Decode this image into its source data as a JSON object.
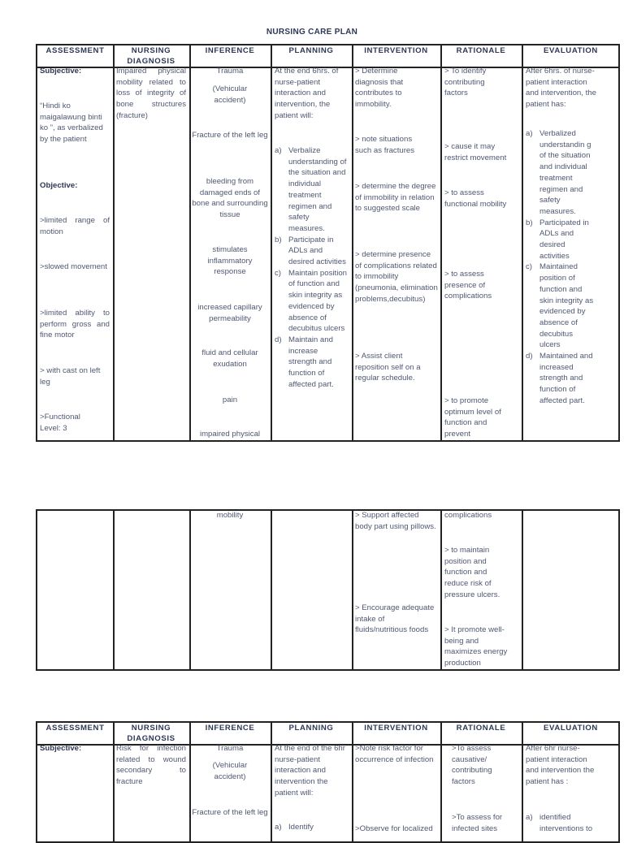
{
  "title": "NURSING CARE PLAN",
  "headers": [
    "ASSESSMENT",
    "NURSING DIAGNOSIS",
    "INFERENCE",
    "PLANNING",
    "INTERVENTION",
    "RATIONALE",
    "EVALUATION"
  ],
  "plan1": {
    "assessment": {
      "subjective_label": "Subjective:",
      "subjective": "“Hindi ko maigalawung binti ko ”, as verbalized by the patient",
      "objective_label": "Objective:",
      "objective": [
        ">limited range of motion",
        ">slowed movement",
        ">limited ability to perform gross and fine motor",
        "> with cast on left leg",
        ">Functional Level: 3"
      ]
    },
    "diagnosis": "Impaired physical mobility related to loss of integrity of bone structures (fracture)",
    "inference": [
      "Trauma",
      "(Vehicular accident)",
      "Fracture of the left leg",
      "bleeding from damaged ends of bone and surrounding tissue",
      "stimulates inflammatory response",
      "increased capillary permeability",
      "fluid and cellular exudation",
      "pain",
      "impaired physical",
      "mobility"
    ],
    "planning": {
      "intro": "At the end 6hrs. of nurse-patient interaction and intervention, the patient will:",
      "items": [
        {
          "marker": "a)",
          "text": "Verbalize understanding of the situation and individual treatment regimen and safety measures."
        },
        {
          "marker": "b)",
          "text": "Participate in ADLs and desired activities"
        },
        {
          "marker": "c)",
          "text": "Maintain position of function and skin integrity as evidenced by absence of decubitus ulcers"
        },
        {
          "marker": "d)",
          "text": "Maintain and increase strength and function of affected part."
        }
      ]
    },
    "intervention": [
      "> Determine diagnosis that contributes to immobility.",
      "> note situations such as fractures",
      "> determine the degree of immobility in relation to suggested scale",
      "> determine presence of complications related to immobility (pneumonia, elimination problems,decubitus)",
      "> Assist client reposition self on a regular schedule.",
      "> Support affected body part using pillows.",
      "> Encourage adequate intake of fluids/nutritious foods"
    ],
    "rationale": [
      "> To identify contributing factors",
      "> cause it may restrict movement",
      "> to assess functional mobility",
      "> to assess presence of complications",
      "> to promote optimum level of function and prevent",
      "complications",
      "> to maintain position and function and reduce risk of pressure ulcers.",
      "> It promote well-being and maximizes energy production"
    ],
    "evaluation": {
      "intro": "After 6hrs. of nurse-patient interaction and intervention, the patient has:",
      "items": [
        {
          "marker": "a)",
          "text": "Verbalized understandin g of the situation and individual treatment regimen and safety measures."
        },
        {
          "marker": "b)",
          "text": "Participated in ADLs and desired activities"
        },
        {
          "marker": "c)",
          "text": "Maintained position of function and skin integrity as evidenced by absence of decubitus ulcers"
        },
        {
          "marker": "d)",
          "text": "Maintained and increased strength and function of affected part."
        }
      ]
    }
  },
  "plan2": {
    "assessment": {
      "subjective_label": "Subjective:"
    },
    "diagnosis": "Risk for infection related to wound secondary to fracture",
    "inference": [
      "Trauma",
      "(Vehicular accident)",
      "Fracture of the left leg"
    ],
    "planning": {
      "intro": "At the end of the 6hr nurse-patient interaction and intervention the patient will:",
      "item_a_marker": "a)",
      "item_a": "Identify"
    },
    "intervention": [
      ">Note risk factor for occurrence of infection",
      ">Observe for localized"
    ],
    "rationale": [
      ">To assess causative/ contributing factors",
      ">To assess for infected sites"
    ],
    "evaluation": {
      "intro": "After 6hr nurse-patient interaction and intervention the patient has :",
      "item_a_marker": "a)",
      "item_a": "identified interventions to"
    }
  }
}
